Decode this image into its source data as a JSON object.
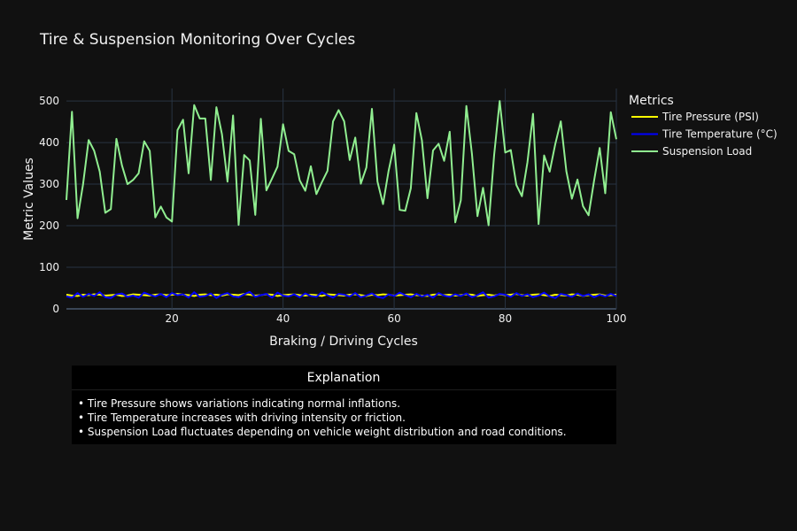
{
  "chart_data": {
    "type": "line",
    "title": "Tire & Suspension Monitoring Over Cycles",
    "xlabel": "Braking / Driving Cycles",
    "ylabel": "Metric Values",
    "xlim": [
      1,
      100
    ],
    "ylim": [
      0,
      530
    ],
    "x_ticks": [
      20,
      40,
      60,
      80,
      100
    ],
    "y_ticks": [
      0,
      100,
      200,
      300,
      400,
      500
    ],
    "grid": true,
    "legend_title": "Metrics",
    "legend_position": "right",
    "series": [
      {
        "name": "Tire Pressure (PSI)",
        "color": "#ffff00",
        "values": [
          34,
          32,
          31,
          34,
          33,
          35,
          34,
          32,
          33,
          34,
          31,
          32,
          35,
          34,
          33,
          32,
          34,
          35,
          33,
          34,
          36,
          34,
          33,
          31,
          34,
          35,
          33,
          34,
          32,
          35,
          34,
          33,
          36,
          34,
          32,
          33,
          35,
          34,
          31,
          33,
          34,
          35,
          33,
          32,
          34,
          33,
          31,
          35,
          34,
          33,
          32,
          34,
          35,
          33,
          31,
          34,
          33,
          35,
          34,
          32,
          33,
          34,
          35,
          33,
          32,
          31,
          34,
          35,
          33,
          34,
          32,
          33,
          35,
          34,
          31,
          33,
          34,
          32,
          35,
          33,
          34,
          36,
          33,
          32,
          34,
          35,
          33,
          31,
          34,
          33,
          32,
          35,
          34,
          31,
          33,
          34,
          35,
          32,
          33,
          34
        ]
      },
      {
        "name": "Tire Temperature (°C)",
        "color": "#0000ff",
        "values": [
          30,
          27,
          38,
          29,
          36,
          31,
          40,
          28,
          26,
          35,
          37,
          29,
          32,
          27,
          39,
          34,
          30,
          36,
          28,
          38,
          33,
          35,
          27,
          40,
          29,
          31,
          37,
          26,
          34,
          38,
          30,
          28,
          35,
          41,
          29,
          33,
          36,
          27,
          39,
          32,
          30,
          35,
          28,
          37,
          31,
          29,
          40,
          33,
          27,
          36,
          34,
          30,
          38,
          28,
          32,
          37,
          29,
          26,
          35,
          31,
          39,
          33,
          28,
          36,
          30,
          34,
          27,
          38,
          32,
          29,
          35,
          31,
          37,
          28,
          33,
          40,
          27,
          30,
          36,
          34,
          29,
          38,
          31,
          35,
          28,
          32,
          39,
          30,
          26,
          36,
          33,
          29,
          37,
          31,
          35,
          28,
          34,
          30,
          36,
          31
        ]
      },
      {
        "name": "Suspension Load",
        "color": "#90ee90",
        "values": [
          262,
          474,
          218,
          300,
          406,
          380,
          330,
          231,
          240,
          409,
          345,
          300,
          310,
          326,
          403,
          380,
          220,
          246,
          220,
          210,
          430,
          455,
          326,
          490,
          458,
          458,
          310,
          485,
          420,
          306,
          465,
          202,
          370,
          357,
          226,
          457,
          285,
          313,
          342,
          444,
          380,
          372,
          309,
          284,
          343,
          276,
          305,
          332,
          451,
          478,
          451,
          358,
          412,
          301,
          340,
          481,
          306,
          252,
          332,
          395,
          238,
          236,
          290,
          471,
          405,
          266,
          381,
          397,
          356,
          426,
          208,
          261,
          488,
          373,
          223,
          291,
          201,
          370,
          500,
          376,
          382,
          298,
          271,
          353,
          469,
          204,
          369,
          330,
          396,
          451,
          331,
          265,
          311,
          247,
          225,
          309,
          387,
          278,
          473,
          408
        ]
      }
    ]
  },
  "explanation": {
    "header": "Explanation",
    "lines": [
      "• Tire Pressure shows variations indicating normal inflations.",
      "• Tire Temperature increases with driving intensity or friction.",
      "• Suspension Load fluctuates depending on vehicle weight distribution and road conditions."
    ]
  },
  "colors": {
    "background": "#111111",
    "grid": "#283442",
    "table_header_bg": "#000000",
    "table_body_bg": "#000000"
  }
}
